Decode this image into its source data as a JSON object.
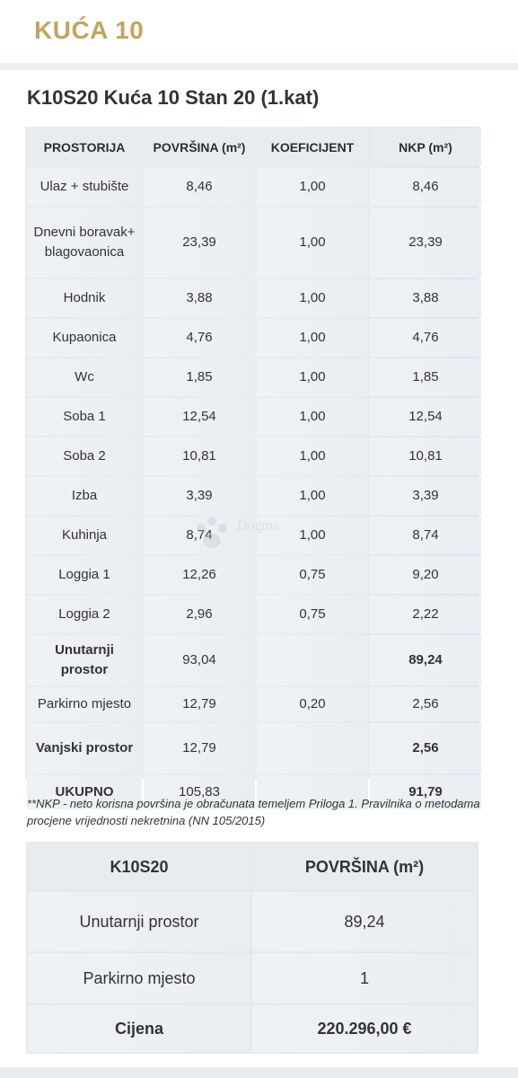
{
  "page": {
    "title": "KUĆA 10",
    "unit_title": "K10S20 Kuća 10 Stan 20 (1.kat)",
    "watermark_text": "Dogma"
  },
  "rooms_table": {
    "headers": [
      "PROSTORIJA",
      "POVRŠINA (m²)",
      "KOEFICIJENT",
      "NKP (m²)"
    ],
    "rows": [
      {
        "name": "Ulaz + stubište",
        "area": "8,46",
        "coef": "1,00",
        "nkp": "8,46"
      },
      {
        "name": "Dnevni boravak+ blagovaonica",
        "area": "23,39",
        "coef": "1,00",
        "nkp": "23,39"
      },
      {
        "name": "Hodnik",
        "area": "3,88",
        "coef": "1,00",
        "nkp": "3,88"
      },
      {
        "name": "Kupaonica",
        "area": "4,76",
        "coef": "1,00",
        "nkp": "4,76"
      },
      {
        "name": "Wc",
        "area": "1,85",
        "coef": "1,00",
        "nkp": "1,85"
      },
      {
        "name": "Soba 1",
        "area": "12,54",
        "coef": "1,00",
        "nkp": "12,54"
      },
      {
        "name": "Soba 2",
        "area": "10,81",
        "coef": "1,00",
        "nkp": "10,81"
      },
      {
        "name": "Izba",
        "area": "3,39",
        "coef": "1,00",
        "nkp": "3,39"
      },
      {
        "name": "Kuhinja",
        "area": "8,74",
        "coef": "1,00",
        "nkp": "8,74"
      },
      {
        "name": "Loggia 1",
        "area": "12,26",
        "coef": "0,75",
        "nkp": "9,20"
      },
      {
        "name": "Loggia 2",
        "area": "2,96",
        "coef": "0,75",
        "nkp": "2,22"
      },
      {
        "name": "Unutarnji prostor",
        "area": "93,04",
        "coef": "",
        "nkp": "89,24"
      },
      {
        "name": "Parkirno mjesto",
        "area": "12,79",
        "coef": "0,20",
        "nkp": "2,56"
      },
      {
        "name": "Vanjski prostor",
        "area": "12,79",
        "coef": "",
        "nkp": "2,56"
      },
      {
        "name": "UKUPNO",
        "area": "105,83",
        "coef": "",
        "nkp": "91,79"
      }
    ]
  },
  "note": "**NKP - neto korisna površina je obračunata temeljem Priloga 1. Pravilnika o metodama procjene vrijednosti nekretnina (NN 105/2015)",
  "summary_table": {
    "headers": [
      "K10S20",
      "POVRŠINA (m²)"
    ],
    "rows": [
      {
        "label": "Unutarnji prostor",
        "value": "89,24"
      },
      {
        "label": "Parkirno mjesto",
        "value": "1"
      },
      {
        "label": "Cijena",
        "value": "220.296,00 €"
      }
    ]
  },
  "colors": {
    "title_gold": "#c4a45c",
    "cell_bg": "#eceff3",
    "text": "#333333"
  }
}
